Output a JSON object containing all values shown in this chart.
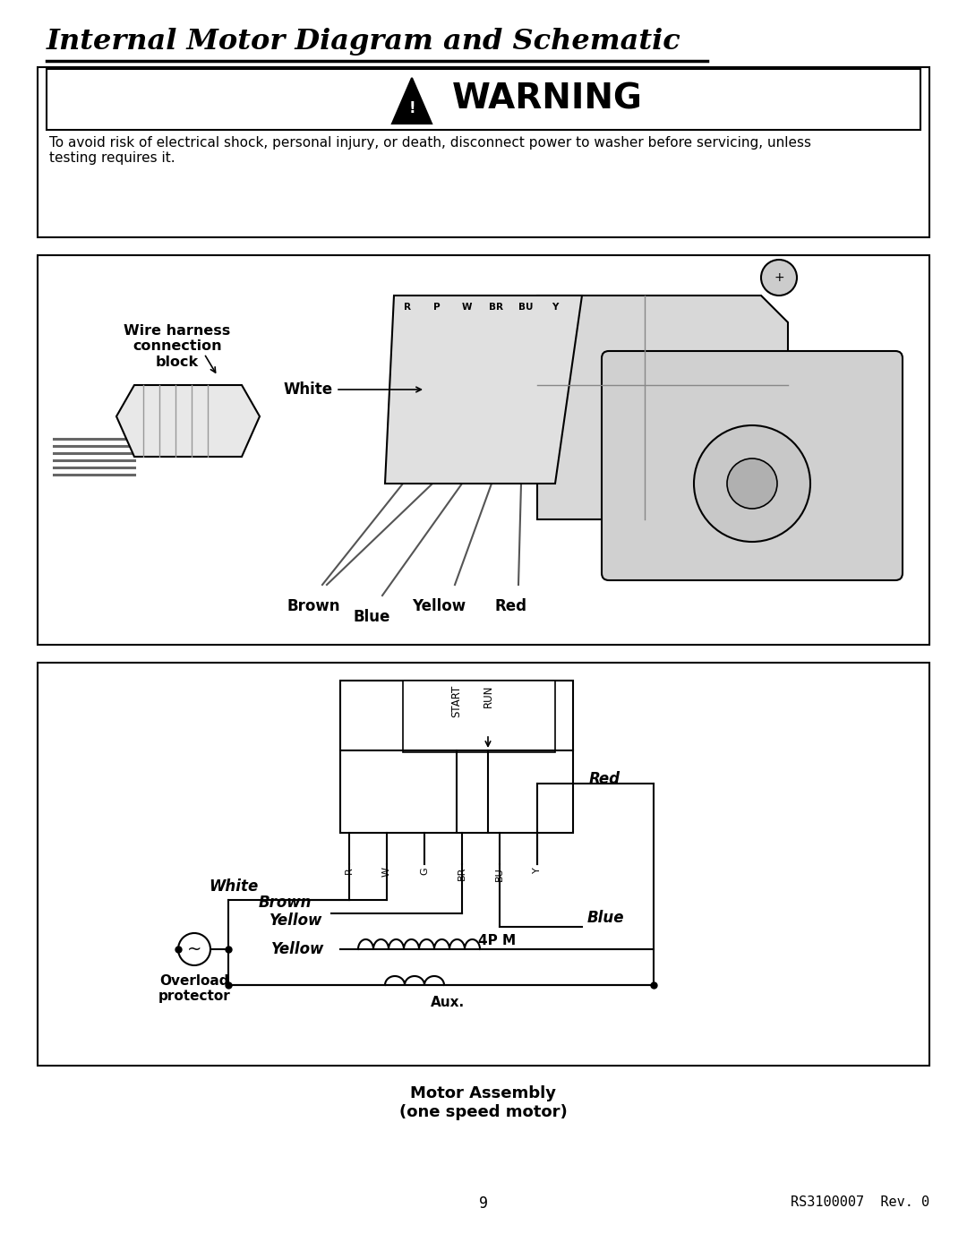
{
  "title": "Internal Motor Diagram and Schematic",
  "warning_text": "WARNING",
  "warning_body": "To avoid risk of electrical shock, personal injury, or death, disconnect power to washer before servicing, unless\ntesting requires it.",
  "page_number": "9",
  "doc_number": "RS3100007  Rev. 0",
  "motor_assembly_label": "Motor Assembly\n(one speed motor)",
  "bg_color": "#ffffff"
}
